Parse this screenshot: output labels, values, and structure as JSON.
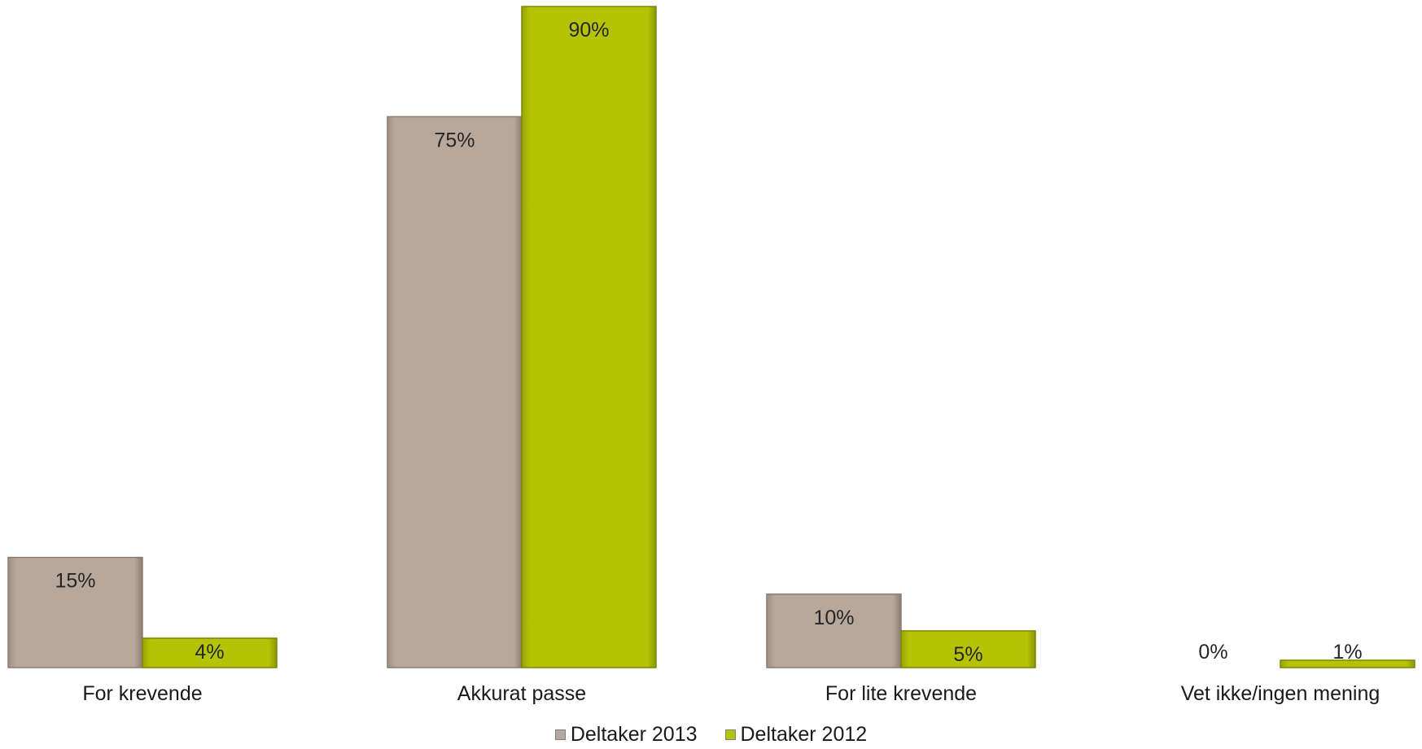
{
  "chart_data": {
    "type": "bar",
    "categories": [
      "For krevende",
      "Akkurat passe",
      "For lite krevende",
      "Vet ikke/ingen mening"
    ],
    "series": [
      {
        "name": "Deltaker 2013",
        "values": [
          15,
          75,
          10,
          0
        ],
        "labels": [
          "15%",
          "75%",
          "10%",
          "0%"
        ],
        "color": "#b8a89c"
      },
      {
        "name": "Deltaker 2012",
        "values": [
          4,
          90,
          5,
          1
        ],
        "labels": [
          "4%",
          "90%",
          "5%",
          "1%"
        ],
        "color": "#b5c307"
      }
    ],
    "ylim": [
      0,
      100
    ],
    "grid": false,
    "legend_position": "bottom"
  }
}
